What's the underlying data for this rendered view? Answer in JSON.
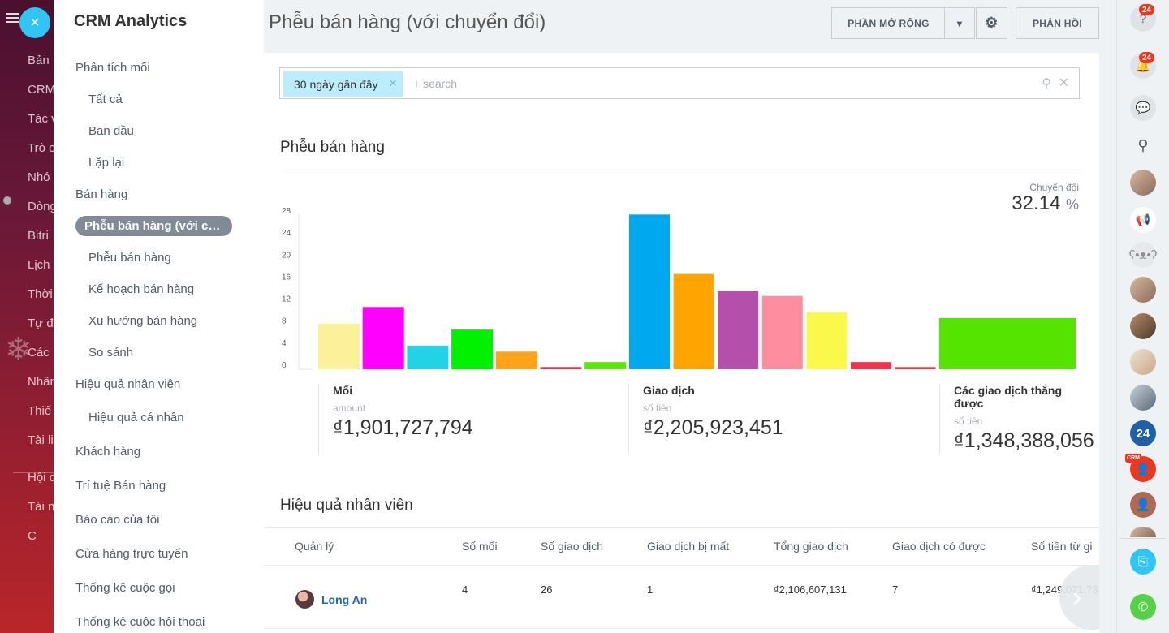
{
  "background_app": {
    "items": [
      "Bản",
      "CRM",
      "Tác v",
      "Trò c",
      "Nhó",
      "Dòng",
      "Bitri",
      "Lịch",
      "Thời",
      "Tự đ",
      "Các",
      "Nhân",
      "Thiế",
      "Tài li",
      "Hội c",
      "Tài n",
      "C"
    ]
  },
  "close_button": {
    "icon": "×"
  },
  "sidebar": {
    "title": "CRM Analytics",
    "items": [
      {
        "label": "Phân tích mối",
        "level": 0
      },
      {
        "label": "Tất cả",
        "level": 1
      },
      {
        "label": "Ban đầu",
        "level": 1
      },
      {
        "label": "Lặp lại",
        "level": 1
      },
      {
        "label": "Bán hàng",
        "level": 0
      },
      {
        "label": "Phễu bán hàng (với ch...",
        "level": 1,
        "active": true
      },
      {
        "label": "Phễu bán hàng",
        "level": 1
      },
      {
        "label": "Kế hoạch bán hàng",
        "level": 1
      },
      {
        "label": "Xu hướng bán hàng",
        "level": 1
      },
      {
        "label": "So sánh",
        "level": 1
      },
      {
        "label": "Hiệu quả nhân viên",
        "level": 0
      },
      {
        "label": "Hiệu quả cá nhân",
        "level": 1
      },
      {
        "label": "Khách hàng",
        "level": 0
      },
      {
        "label": "Trí tuệ Bán hàng",
        "level": 0
      },
      {
        "label": "Báo cáo của tôi",
        "level": 0
      },
      {
        "label": "Cửa hàng trực tuyến",
        "level": 0
      },
      {
        "label": "Thống kê cuộc gọi",
        "level": 0
      },
      {
        "label": "Thống kê cuộc hội thoại",
        "level": 0
      }
    ]
  },
  "header": {
    "title": "Phễu bán hàng (với chuyển đổi)",
    "extensions_label": "PHẦN MỞ RỘNG",
    "feedback_label": "PHẢN HỒI"
  },
  "filter": {
    "chip_label": "30 ngày gần đây",
    "placeholder": "+ search"
  },
  "funnel": {
    "title": "Phễu bán hàng",
    "conversion_label": "Chuyển đổi",
    "conversion_value": "32.14",
    "conversion_unit": "%"
  },
  "chart_data": {
    "type": "bar",
    "yticks": [
      0,
      4,
      8,
      12,
      16,
      20,
      24,
      28
    ],
    "ylim": [
      0,
      28
    ],
    "groups": [
      {
        "values": [
          8.3,
          11.3,
          4.3,
          7.2,
          3.2,
          0.4,
          1.3
        ],
        "colors": [
          "#fdf09a",
          "#ff00ff",
          "#22d3e8",
          "#00f200",
          "#ffa31a",
          "#f03049",
          "#5be60c"
        ]
      },
      {
        "values": [
          28.1,
          17.3,
          14.3,
          13.3,
          10.3,
          1.3,
          0.4
        ],
        "colors": [
          "#00a8f0",
          "#ffa400",
          "#b44fab",
          "#ff8da0",
          "#faf84a",
          "#f5324a",
          "#f5324a"
        ]
      },
      {
        "values": [
          9.3
        ],
        "colors": [
          "#55e300"
        ]
      }
    ]
  },
  "metrics": [
    {
      "title": "Mối",
      "subtitle": "amount",
      "value": "₫1,901,727,794"
    },
    {
      "title": "Giao dịch",
      "subtitle": "số tiền",
      "value": "₫2,205,923,451"
    },
    {
      "title": "Các giao dịch thắng được",
      "subtitle": "số tiền",
      "value": "₫1,348,388,056"
    }
  ],
  "performance": {
    "title": "Hiệu quả nhân viên",
    "columns": [
      "Quản lý",
      "Số mối",
      "Số giao dịch",
      "Giao dịch bị mất",
      "Tổng giao dịch",
      "Giao dịch có được",
      "Số tiền từ gi"
    ],
    "rows": [
      {
        "name": "Long An",
        "cells": [
          "4",
          "26",
          "1",
          "₫2,106,607,131",
          "7",
          "₫1,249,071,73"
        ]
      }
    ]
  },
  "right_panel": {
    "help_badge": "24",
    "notif_badge": "24",
    "b24_label": "24",
    "crm_tag": "CRM"
  }
}
